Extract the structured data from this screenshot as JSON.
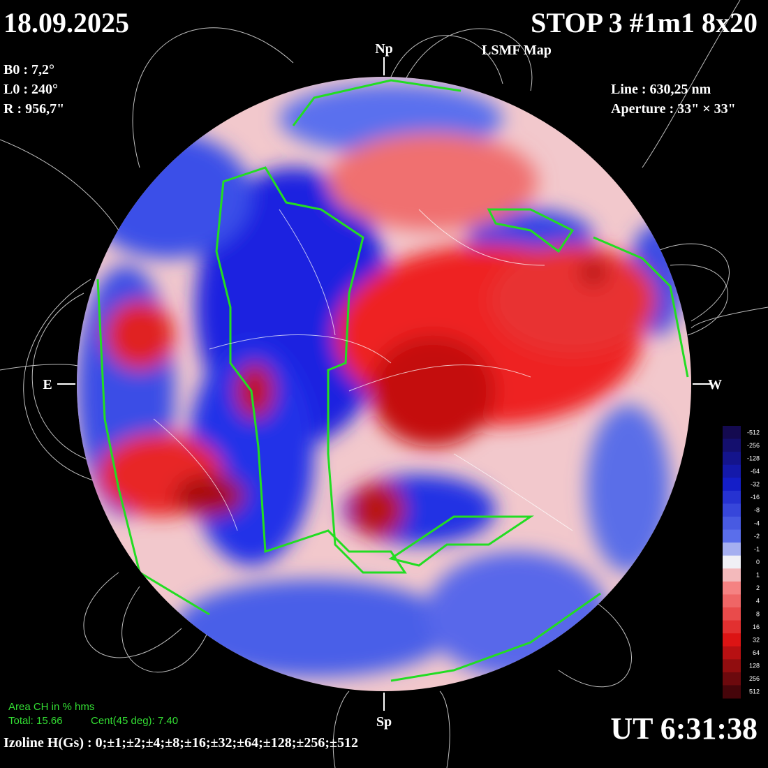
{
  "header": {
    "date": "18.09.2025",
    "title": "STOP 3 #1m1 8x20",
    "subtitle": "LSMF  Map"
  },
  "parameters": {
    "b0": "B0 : 7,2°",
    "l0": "L0 : 240°",
    "r": "R  : 956,7\""
  },
  "instrument": {
    "line": "Line :  630,25 nm",
    "aperture": "Aperture : 33\" × 33\""
  },
  "directions": {
    "north": "Np",
    "south": "Sp",
    "east": "E",
    "west": "W"
  },
  "colorbar": {
    "labels": [
      -512,
      -256,
      -128,
      -64,
      -32,
      -16,
      -8,
      -4,
      -2,
      -1,
      0,
      1,
      2,
      4,
      8,
      16,
      32,
      64,
      128,
      256,
      512
    ]
  },
  "coronal_holes": {
    "heading": "Area CH in % hms",
    "total": "Total: 15.66",
    "central": "Cent(45 deg): 7.40"
  },
  "footer": {
    "isolines": "Izoline H(Gs) : 0;±1;±2;±4;±8;±16;±32;±64;±128;±256;±512",
    "time": "UT 6:31:38"
  }
}
